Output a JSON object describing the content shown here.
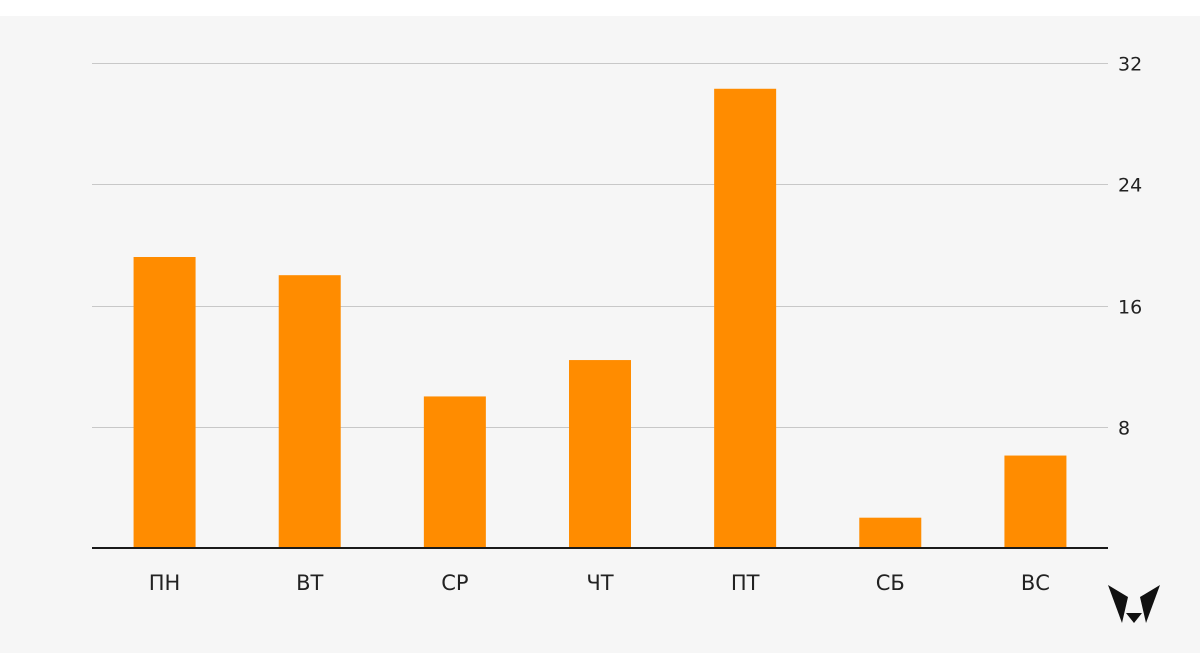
{
  "chart_data": {
    "type": "bar",
    "categories": [
      "ПН",
      "ВТ",
      "СР",
      "ЧТ",
      "ПТ",
      "СБ",
      "ВС"
    ],
    "values": [
      19.2,
      18,
      10,
      12.4,
      30.3,
      2,
      6.1
    ],
    "ylim": [
      0,
      32
    ],
    "yticks": [
      8,
      16,
      24,
      32
    ],
    "y_axis_position": "right",
    "grid": true,
    "colors": {
      "bar": "#ff8c00",
      "grid": "#c8c8c8",
      "baseline": "#1a1a1a",
      "background": "#f6f6f6"
    }
  },
  "logo": {
    "icon": "fox-head-logo-icon",
    "color": "#111111"
  }
}
